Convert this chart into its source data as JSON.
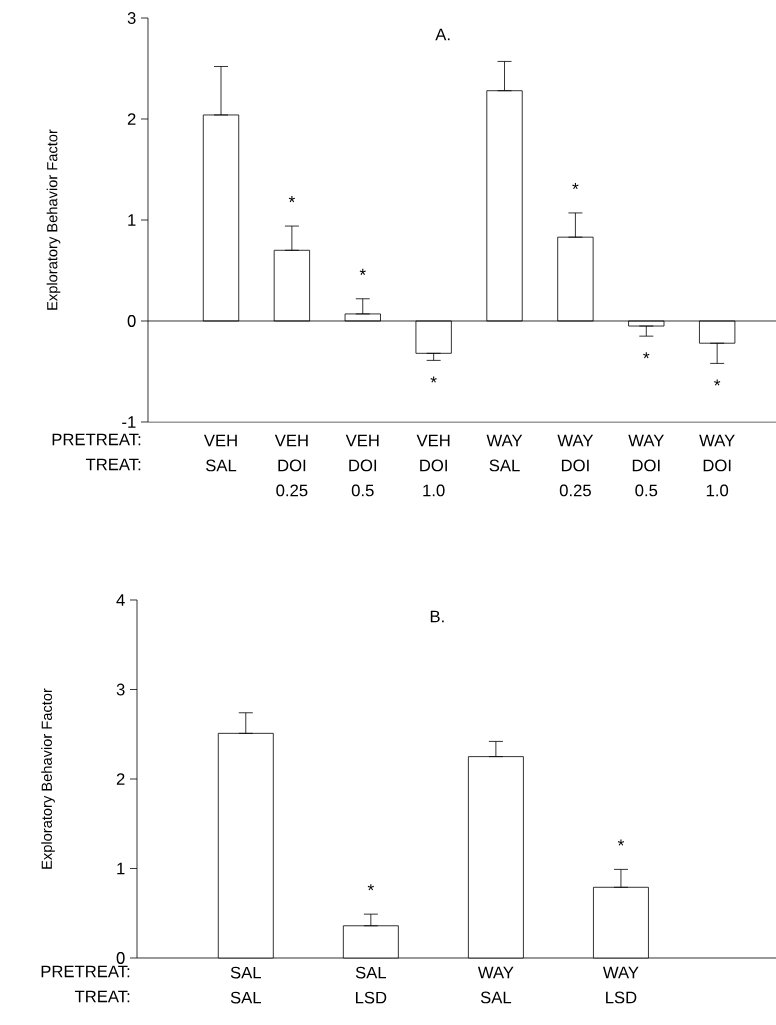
{
  "chart_data": [
    {
      "type": "bar",
      "title": "A.",
      "ylabel": "Exploratory Behavior Factor",
      "categories": [
        "VEH SAL",
        "VEH DOI 0.25",
        "VEH DOI 0.5",
        "VEH DOI 1.0",
        "WAY SAL",
        "WAY DOI 0.25",
        "WAY DOI 0.5",
        "WAY DOI 1.0"
      ],
      "values": [
        2.04,
        0.7,
        0.07,
        -0.32,
        2.28,
        0.83,
        -0.05,
        -0.22
      ],
      "errors": [
        [
          2.04,
          2.52
        ],
        [
          0.7,
          0.94
        ],
        [
          0.07,
          0.22
        ],
        [
          -0.39,
          -0.32
        ],
        [
          2.28,
          2.57
        ],
        [
          0.83,
          1.07
        ],
        [
          -0.15,
          -0.05
        ],
        [
          -0.42,
          -0.22
        ]
      ],
      "color": "#ffffff",
      "ylim": [
        -1,
        3
      ],
      "yticks": [
        -1,
        0,
        1,
        2,
        3
      ],
      "ref_lines": [
        {
          "axis": "y",
          "value": 0
        }
      ],
      "annotations": [
        "PRETREAT:",
        "TREAT:",
        {
          "text": "*",
          "x": "VEH DOI 0.25",
          "y": 0.94
        },
        {
          "text": "*",
          "x": "VEH DOI 0.5",
          "y": 0.22
        },
        {
          "text": "*",
          "x": "VEH DOI 1.0",
          "y": -0.39
        },
        {
          "text": "*",
          "x": "WAY DOI 0.25",
          "y": 1.07
        },
        {
          "text": "*",
          "x": "WAY DOI 0.5",
          "y": -0.15
        },
        {
          "text": "*",
          "x": "WAY DOI 1.0",
          "y": -0.42
        }
      ]
    },
    {
      "type": "bar",
      "title": "B.",
      "ylabel": "Exploratory Behavior Factor",
      "categories": [
        "SAL SAL",
        "SAL LSD",
        "WAY SAL",
        "WAY LSD"
      ],
      "values": [
        2.51,
        0.36,
        2.25,
        0.79
      ],
      "errors": [
        [
          2.51,
          2.74
        ],
        [
          0.36,
          0.49
        ],
        [
          2.25,
          2.42
        ],
        [
          0.79,
          0.99
        ]
      ],
      "color": "#ffffff",
      "ylim": [
        0,
        4
      ],
      "yticks": [
        0,
        1,
        2,
        3,
        4
      ],
      "annotations": [
        "PRETREAT:",
        "TREAT:",
        {
          "text": "*",
          "x": "SAL LSD",
          "y": 0.49
        },
        {
          "text": "*",
          "x": "WAY LSD",
          "y": 0.99
        }
      ]
    }
  ]
}
